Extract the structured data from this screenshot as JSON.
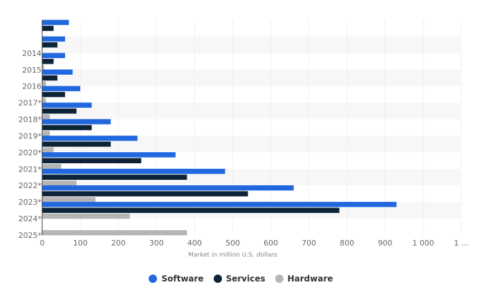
{
  "chart_data": {
    "type": "bar",
    "orientation": "horizontal",
    "categories": [
      "",
      "2014",
      "2015",
      "2016",
      "2017*",
      "2018*",
      "2019*",
      "2020*",
      "2021*",
      "2022*",
      "2023*",
      "2024*",
      "2025*"
    ],
    "series": [
      {
        "name": "Software",
        "color": "#2168df",
        "values": [
          70,
          60,
          60,
          80,
          100,
          130,
          180,
          250,
          350,
          480,
          660,
          930,
          null
        ]
      },
      {
        "name": "Services",
        "color": "#0d2438",
        "values": [
          30,
          40,
          30,
          40,
          60,
          90,
          130,
          180,
          260,
          380,
          540,
          780,
          null
        ]
      },
      {
        "name": "Hardware",
        "color": "#b5b5b5",
        "values": [
          0,
          0,
          5,
          10,
          10,
          20,
          20,
          30,
          50,
          90,
          140,
          230,
          380
        ]
      }
    ],
    "xlabel": "Market in million U.S. dollars",
    "ylabel": "",
    "xticks": [
      "0",
      "100",
      "200",
      "300",
      "400",
      "500",
      "600",
      "700",
      "800",
      "900",
      "1 000",
      "1 …"
    ],
    "xlim": [
      0,
      1100
    ],
    "grid": true,
    "legend_position": "bottom-center"
  }
}
